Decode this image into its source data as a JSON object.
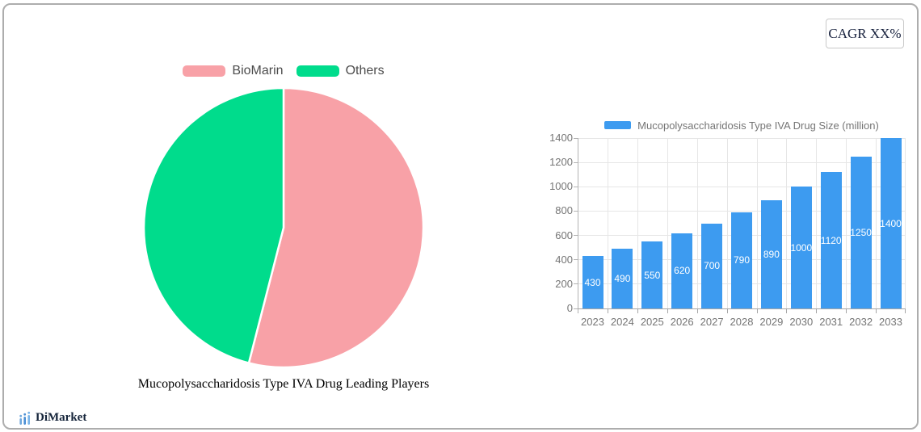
{
  "card": {
    "cagr_label": "CAGR XX%"
  },
  "footer": {
    "brand": "DiMarket"
  },
  "colors": {
    "bar_blue": "#3d9bf0",
    "pie_pink": "#f8a1a7",
    "pie_green": "#00dc8c",
    "axis_text": "#757575",
    "grid_line": "#e6e6e6",
    "brand_navy": "#16253b"
  },
  "chart_data": [
    {
      "type": "pie",
      "title": "Mucopolysaccharidosis Type IVA Drug Leading Players",
      "legend_position": "top",
      "start_angle_deg": 0,
      "slices": [
        {
          "label": "BioMarin",
          "value": 54,
          "color": "#f8a1a7"
        },
        {
          "label": "Others",
          "value": 46,
          "color": "#00dc8c"
        }
      ]
    },
    {
      "type": "bar",
      "legend": "Mucopolysaccharidosis Type IVA Drug Size (million)",
      "legend_position": "top",
      "categories": [
        "2023",
        "2024",
        "2025",
        "2026",
        "2027",
        "2028",
        "2029",
        "2030",
        "2031",
        "2032",
        "2033"
      ],
      "values": [
        430,
        490,
        550,
        620,
        700,
        790,
        890,
        1000,
        1120,
        1250,
        1400
      ],
      "bar_color": "#3d9bf0",
      "ylim": [
        0,
        1400
      ],
      "y_ticks": [
        0,
        200,
        400,
        600,
        800,
        1000,
        1200,
        1400
      ],
      "grid": true,
      "value_labels": "inside-center-white"
    }
  ]
}
